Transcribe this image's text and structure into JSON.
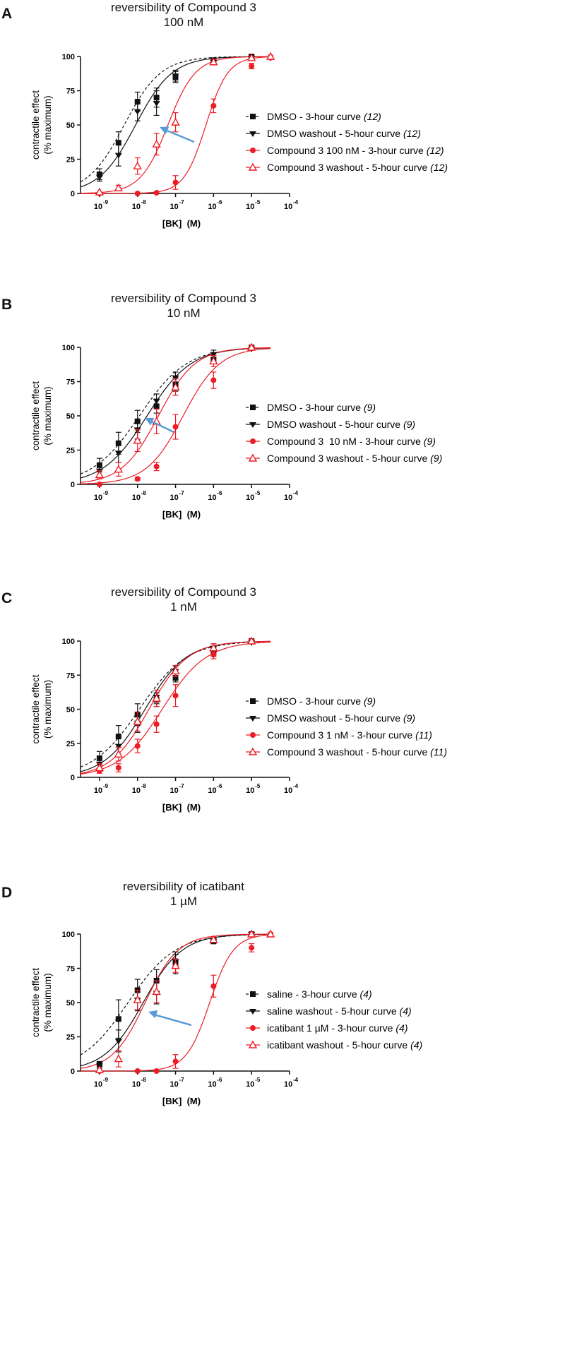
{
  "figure": {
    "x_axis_label": "[BK]  (M)",
    "y_axis_label_line1": "contractile effect",
    "y_axis_label_line2": "(% maximum)",
    "y_ticks": [
      "0",
      "25",
      "50",
      "75",
      "100"
    ],
    "x_ticks": [
      "-9",
      "-8",
      "-7",
      "-6",
      "-5",
      "-4"
    ],
    "x_tick_base": "10",
    "colors": {
      "black": "#111111",
      "red": "#ee1c25",
      "arrow": "#5b9bd5"
    }
  },
  "panels": [
    {
      "letter": "A",
      "title_line1": "reversibility of Compound 3",
      "title_line2": "100 nM",
      "legend": [
        {
          "label": "DMSO - 3-hour curve",
          "n": "(12)"
        },
        {
          "label": "DMSO washout - 5-hour curve",
          "n": "(12)"
        },
        {
          "label": "Compound 3 100 nM - 3-hour curve",
          "n": "(12)"
        },
        {
          "label": "Compound 3 washout - 5-hour curve",
          "n": "(12)"
        }
      ]
    },
    {
      "letter": "B",
      "title_line1": "reversibility of Compound 3",
      "title_line2": "10 nM",
      "legend": [
        {
          "label": "DMSO - 3-hour curve",
          "n": "(9)"
        },
        {
          "label": "DMSO washout - 5-hour curve",
          "n": "(9)"
        },
        {
          "label": "Compound 3  10 nM - 3-hour curve",
          "n": "(9)"
        },
        {
          "label": "Compound 3 washout - 5-hour curve",
          "n": "(9)"
        }
      ]
    },
    {
      "letter": "C",
      "title_line1": "reversibility of Compound 3",
      "title_line2": "1 nM",
      "legend": [
        {
          "label": "DMSO - 3-hour curve",
          "n": "(9)"
        },
        {
          "label": "DMSO washout - 5-hour curve",
          "n": "(9)"
        },
        {
          "label": "Compound 3 1 nM - 3-hour curve",
          "n": "(11)"
        },
        {
          "label": "Compound 3 washout - 5-hour curve",
          "n": "(11)"
        }
      ]
    },
    {
      "letter": "D",
      "title_line1": "reversibility of icatibant",
      "title_line2": "1 µM",
      "legend": [
        {
          "label": "saline - 3-hour curve",
          "n": "(4)"
        },
        {
          "label": "saline washout - 5-hour curve",
          "n": "(4)"
        },
        {
          "label": "icatibant 1 µM - 3-hour curve",
          "n": "(4)"
        },
        {
          "label": "icatibant washout - 5-hour curve",
          "n": "(4)"
        }
      ]
    }
  ],
  "chart_data": [
    {
      "type": "scatter",
      "panel": "A",
      "title": "reversibility of Compound 3 100 nM",
      "xlabel": "[BK]  (M)",
      "ylabel": "contractile effect (% maximum)",
      "xscale": "log10",
      "xlim": [
        -9.5,
        -4
      ],
      "ylim": [
        0,
        100
      ],
      "series": [
        {
          "name": "DMSO - 3-hour curve (12)",
          "color": "#111111",
          "marker": "square",
          "line": "dashed",
          "logEC50": -8.35,
          "hill": 0.9,
          "points": [
            [
              -9,
              14,
              4
            ],
            [
              -8.5,
              37,
              8
            ],
            [
              -8,
              67,
              7
            ],
            [
              -7.5,
              70,
              7
            ],
            [
              -7,
              85,
              4
            ],
            [
              -6,
              97,
              2
            ],
            [
              -5,
              100,
              1
            ]
          ]
        },
        {
          "name": "DMSO washout - 5-hour curve (12)",
          "color": "#111111",
          "marker": "triangle-down",
          "line": "solid",
          "logEC50": -8.05,
          "hill": 0.9,
          "points": [
            [
              -9,
              12,
              3
            ],
            [
              -8.5,
              28,
              8
            ],
            [
              -8,
              60,
              7
            ],
            [
              -7.5,
              66,
              9
            ],
            [
              -7,
              86,
              4
            ],
            [
              -6,
              96,
              2
            ],
            [
              -5,
              99,
              1
            ]
          ]
        },
        {
          "name": "Compound 3 100 nM - 3-hour curve (12)",
          "color": "#ee1c25",
          "marker": "circle",
          "line": "solid",
          "logEC50": -6.2,
          "hill": 1.5,
          "points": [
            [
              -9,
              0,
              0
            ],
            [
              -8,
              0,
              0
            ],
            [
              -7.5,
              0.5,
              0
            ],
            [
              -7,
              8,
              5
            ],
            [
              -6,
              64,
              5
            ],
            [
              -5,
              93,
              2
            ],
            [
              -4.5,
              99,
              1
            ]
          ]
        },
        {
          "name": "Compound 3 washout - 5-hour curve (12)",
          "color": "#ee1c25",
          "marker": "triangle-up",
          "line": "solid",
          "logEC50": -7.2,
          "hill": 1.2,
          "points": [
            [
              -9,
              1,
              0
            ],
            [
              -8.5,
              4,
              2
            ],
            [
              -8,
              20,
              6
            ],
            [
              -7.5,
              36,
              8
            ],
            [
              -7,
              52,
              7
            ],
            [
              -6,
              96,
              2
            ],
            [
              -5,
              99,
              1
            ],
            [
              -4.5,
              100,
              1
            ]
          ]
        }
      ]
    },
    {
      "type": "scatter",
      "panel": "B",
      "title": "reversibility of Compound 3 10 nM",
      "xlabel": "[BK]  (M)",
      "ylabel": "contractile effect (% maximum)",
      "xscale": "log10",
      "xlim": [
        -9.5,
        -4
      ],
      "ylim": [
        0,
        100
      ],
      "series": [
        {
          "name": "DMSO - 3-hour curve (9)",
          "color": "#111111",
          "marker": "square",
          "line": "dashed",
          "logEC50": -7.95,
          "hill": 0.7,
          "points": [
            [
              -9,
              14,
              5
            ],
            [
              -8.5,
              30,
              8
            ],
            [
              -8,
              46,
              8
            ],
            [
              -7.5,
              57,
              5
            ],
            [
              -7,
              73,
              5
            ],
            [
              -6,
              91,
              3
            ],
            [
              -5,
              100,
              1
            ]
          ]
        },
        {
          "name": "DMSO washout - 5-hour curve (9)",
          "color": "#111111",
          "marker": "triangle-down",
          "line": "solid",
          "logEC50": -7.75,
          "hill": 0.75,
          "points": [
            [
              -9,
              10,
              4
            ],
            [
              -8.5,
              23,
              7
            ],
            [
              -8,
              40,
              7
            ],
            [
              -7.5,
              61,
              5
            ],
            [
              -7,
              78,
              4
            ],
            [
              -6,
              95,
              3
            ],
            [
              -5,
              99,
              1
            ]
          ]
        },
        {
          "name": "Compound 3  10 nM - 3-hour curve (9)",
          "color": "#ee1c25",
          "marker": "circle",
          "line": "solid",
          "logEC50": -6.8,
          "hill": 0.9,
          "points": [
            [
              -9,
              0,
              0
            ],
            [
              -8,
              4,
              1
            ],
            [
              -7.5,
              13,
              3
            ],
            [
              -7,
              42,
              9
            ],
            [
              -6,
              76,
              6
            ],
            [
              -5,
              100,
              1
            ]
          ]
        },
        {
          "name": "Compound 3 washout - 5-hour curve (9)",
          "color": "#ee1c25",
          "marker": "triangle-up",
          "line": "solid",
          "logEC50": -7.45,
          "hill": 0.9,
          "points": [
            [
              -9,
              7,
              3
            ],
            [
              -8.5,
              11,
              5
            ],
            [
              -8,
              32,
              8
            ],
            [
              -7.5,
              46,
              9
            ],
            [
              -7,
              71,
              6
            ],
            [
              -6,
              90,
              4
            ],
            [
              -5,
              100,
              1
            ]
          ]
        }
      ]
    },
    {
      "type": "scatter",
      "panel": "C",
      "title": "reversibility of Compound 3 1 nM",
      "xlabel": "[BK]  (M)",
      "ylabel": "contractile effect (% maximum)",
      "xscale": "log10",
      "xlim": [
        -9.5,
        -4
      ],
      "ylim": [
        0,
        100
      ],
      "series": [
        {
          "name": "DMSO - 3-hour curve (9)",
          "color": "#111111",
          "marker": "square",
          "line": "dashed",
          "logEC50": -7.95,
          "hill": 0.7,
          "points": [
            [
              -9,
              14,
              5
            ],
            [
              -8.5,
              30,
              8
            ],
            [
              -8,
              46,
              8
            ],
            [
              -7.5,
              57,
              5
            ],
            [
              -7,
              73,
              3
            ],
            [
              -6,
              92,
              3
            ],
            [
              -5,
              100,
              1
            ]
          ]
        },
        {
          "name": "DMSO washout - 5-hour curve (9)",
          "color": "#111111",
          "marker": "triangle-down",
          "line": "solid",
          "logEC50": -7.8,
          "hill": 0.8,
          "points": [
            [
              -9,
              10,
              4
            ],
            [
              -8.5,
              23,
              7
            ],
            [
              -8,
              40,
              7
            ],
            [
              -7.5,
              59,
              5
            ],
            [
              -7,
              78,
              4
            ],
            [
              -6,
              95,
              3
            ],
            [
              -5,
              99,
              1
            ]
          ]
        },
        {
          "name": "Compound 3 1 nM - 3-hour curve (11)",
          "color": "#ee1c25",
          "marker": "circle",
          "line": "solid",
          "logEC50": -7.35,
          "hill": 0.75,
          "points": [
            [
              -9,
              5,
              2
            ],
            [
              -8.5,
              7,
              3
            ],
            [
              -8,
              23,
              5
            ],
            [
              -7.5,
              39,
              6
            ],
            [
              -7,
              60,
              8
            ],
            [
              -6,
              90,
              3
            ],
            [
              -5,
              100,
              1
            ]
          ]
        },
        {
          "name": "Compound 3 washout - 5-hour curve (11)",
          "color": "#ee1c25",
          "marker": "triangle-up",
          "line": "solid",
          "logEC50": -7.7,
          "hill": 0.85,
          "points": [
            [
              -9,
              7,
              3
            ],
            [
              -8.5,
              17,
              5
            ],
            [
              -8,
              41,
              7
            ],
            [
              -7.5,
              58,
              6
            ],
            [
              -7,
              78,
              4
            ],
            [
              -6,
              95,
              3
            ],
            [
              -5,
              100,
              1
            ]
          ]
        }
      ]
    },
    {
      "type": "scatter",
      "panel": "D",
      "title": "reversibility of icatibant 1 µM",
      "xlabel": "[BK]  (M)",
      "ylabel": "contractile effect (% maximum)",
      "xscale": "log10",
      "xlim": [
        -9.5,
        -4
      ],
      "ylim": [
        0,
        100
      ],
      "series": [
        {
          "name": "saline - 3-hour curve (4)",
          "color": "#111111",
          "marker": "square",
          "line": "dashed",
          "logEC50": -8.25,
          "hill": 0.7,
          "points": [
            [
              -9,
              5,
              2
            ],
            [
              -8.5,
              38,
              14
            ],
            [
              -8,
              59,
              8
            ],
            [
              -7.5,
              66,
              8
            ],
            [
              -7,
              79,
              8
            ],
            [
              -6,
              95,
              2
            ],
            [
              -5,
              100,
              1
            ]
          ]
        },
        {
          "name": "saline washout - 5-hour curve (4)",
          "color": "#111111",
          "marker": "triangle-down",
          "line": "solid",
          "logEC50": -7.85,
          "hill": 0.85,
          "points": [
            [
              -9,
              4,
              2
            ],
            [
              -8.5,
              22,
              8
            ],
            [
              -8,
              52,
              8
            ],
            [
              -7.5,
              57,
              8
            ],
            [
              -7,
              80,
              5
            ],
            [
              -6,
              95,
              2
            ],
            [
              -5,
              100,
              1
            ]
          ]
        },
        {
          "name": "icatibant 1 µM - 3-hour curve (4)",
          "color": "#ee1c25",
          "marker": "circle",
          "line": "solid",
          "logEC50": -6.1,
          "hill": 1.4,
          "points": [
            [
              -9,
              0,
              0
            ],
            [
              -8,
              0,
              0
            ],
            [
              -7.5,
              0,
              0
            ],
            [
              -7,
              7,
              5
            ],
            [
              -6,
              62,
              8
            ],
            [
              -5,
              90,
              3
            ],
            [
              -4.5,
              100,
              1
            ]
          ]
        },
        {
          "name": "icatibant washout - 5-hour curve (4)",
          "color": "#ee1c25",
          "marker": "triangle-up",
          "line": "solid",
          "logEC50": -7.8,
          "hill": 1.0,
          "points": [
            [
              -9,
              1,
              0
            ],
            [
              -8.5,
              9,
              6
            ],
            [
              -8,
              52,
              7
            ],
            [
              -7.5,
              58,
              8
            ],
            [
              -7,
              77,
              5
            ],
            [
              -6,
              96,
              2
            ],
            [
              -5,
              100,
              1
            ],
            [
              -4.5,
              100,
              1
            ]
          ]
        }
      ]
    }
  ]
}
